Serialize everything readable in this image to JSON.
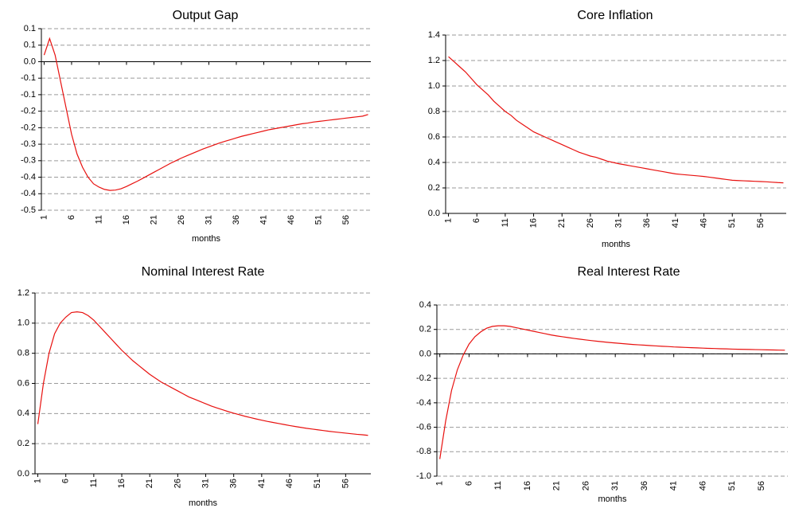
{
  "chart_data": [
    {
      "type": "line",
      "title": "Output Gap",
      "x_label": "months",
      "color": "#e8110f",
      "grid": true,
      "x": [
        1,
        2,
        3,
        4,
        5,
        6,
        7,
        8,
        9,
        10,
        11,
        12,
        13,
        14,
        15,
        16,
        17,
        18,
        19,
        20,
        21,
        22,
        23,
        24,
        25,
        26,
        27,
        28,
        29,
        30,
        31,
        32,
        33,
        34,
        35,
        36,
        37,
        38,
        39,
        40,
        41,
        42,
        43,
        44,
        45,
        46,
        47,
        48,
        49,
        50,
        51,
        52,
        53,
        54,
        55,
        56,
        57,
        58,
        59,
        60
      ],
      "values": [
        0.02,
        0.07,
        0.02,
        -0.06,
        -0.14,
        -0.22,
        -0.28,
        -0.32,
        -0.35,
        -0.37,
        -0.38,
        -0.387,
        -0.39,
        -0.389,
        -0.385,
        -0.378,
        -0.37,
        -0.362,
        -0.353,
        -0.344,
        -0.335,
        -0.326,
        -0.317,
        -0.308,
        -0.3,
        -0.292,
        -0.285,
        -0.278,
        -0.271,
        -0.264,
        -0.258,
        -0.252,
        -0.246,
        -0.241,
        -0.236,
        -0.231,
        -0.226,
        -0.222,
        -0.218,
        -0.214,
        -0.21,
        -0.206,
        -0.203,
        -0.2,
        -0.197,
        -0.194,
        -0.191,
        -0.188,
        -0.186,
        -0.183,
        -0.181,
        -0.179,
        -0.177,
        -0.175,
        -0.173,
        -0.171,
        -0.169,
        -0.167,
        -0.165,
        -0.16
      ],
      "xlim": [
        0.5,
        60.5
      ],
      "xticks": [
        1,
        6,
        11,
        16,
        21,
        26,
        31,
        36,
        41,
        46,
        51,
        56
      ],
      "ylim": [
        -0.45,
        0.1
      ],
      "yticks": [
        {
          "value": -0.45,
          "label": "-0.5"
        },
        -0.4,
        {
          "value": -0.35,
          "label": "-0.4"
        },
        -0.3,
        {
          "value": -0.25,
          "label": "-0.3"
        },
        -0.2,
        {
          "value": -0.15,
          "label": "-0.2"
        },
        -0.1,
        {
          "value": -0.05,
          "label": "-0.1"
        },
        {
          "value": 0,
          "label": "0.0"
        },
        {
          "value": 0.05,
          "label": "0.1"
        },
        0.1
      ]
    },
    {
      "type": "line",
      "title": "Core Inflation",
      "x_label": "months",
      "color": "#e8110f",
      "grid": true,
      "x": [
        1,
        2,
        3,
        4,
        5,
        6,
        7,
        8,
        9,
        10,
        11,
        12,
        13,
        14,
        15,
        16,
        17,
        18,
        19,
        20,
        21,
        22,
        23,
        24,
        25,
        26,
        27,
        28,
        29,
        30,
        31,
        32,
        33,
        34,
        35,
        36,
        37,
        38,
        39,
        40,
        41,
        42,
        43,
        44,
        45,
        46,
        47,
        48,
        49,
        50,
        51,
        52,
        53,
        54,
        55,
        56,
        57,
        58,
        59,
        60
      ],
      "values": [
        1.23,
        1.19,
        1.15,
        1.11,
        1.06,
        1.01,
        0.97,
        0.93,
        0.88,
        0.84,
        0.8,
        0.77,
        0.73,
        0.7,
        0.67,
        0.64,
        0.62,
        0.6,
        0.58,
        0.56,
        0.54,
        0.52,
        0.5,
        0.48,
        0.465,
        0.45,
        0.44,
        0.425,
        0.41,
        0.4,
        0.39,
        0.382,
        0.374,
        0.366,
        0.358,
        0.35,
        0.342,
        0.334,
        0.326,
        0.318,
        0.31,
        0.306,
        0.302,
        0.298,
        0.294,
        0.29,
        0.284,
        0.278,
        0.272,
        0.266,
        0.26,
        0.258,
        0.256,
        0.254,
        0.252,
        0.25,
        0.248,
        0.245,
        0.242,
        0.24
      ],
      "xlim": [
        0.5,
        60.5
      ],
      "xticks": [
        1,
        6,
        11,
        16,
        21,
        26,
        31,
        36,
        41,
        46,
        51,
        56
      ],
      "ylim": [
        0,
        1.4
      ],
      "yticks": [
        {
          "value": 0,
          "label": "0.0"
        },
        0.2,
        0.4,
        0.6,
        0.8,
        {
          "value": 1,
          "label": "1.0"
        },
        1.2,
        1.4
      ]
    },
    {
      "type": "line",
      "title": "Nominal Interest Rate",
      "x_label": "months",
      "color": "#e8110f",
      "grid": true,
      "x": [
        1,
        2,
        3,
        4,
        5,
        6,
        7,
        8,
        9,
        10,
        11,
        12,
        13,
        14,
        15,
        16,
        17,
        18,
        19,
        20,
        21,
        22,
        23,
        24,
        25,
        26,
        27,
        28,
        29,
        30,
        31,
        32,
        33,
        34,
        35,
        36,
        37,
        38,
        39,
        40,
        41,
        42,
        43,
        44,
        45,
        46,
        47,
        48,
        49,
        50,
        51,
        52,
        53,
        54,
        55,
        56,
        57,
        58,
        59,
        60
      ],
      "values": [
        0.33,
        0.6,
        0.8,
        0.93,
        1.0,
        1.04,
        1.07,
        1.075,
        1.07,
        1.05,
        1.02,
        0.98,
        0.94,
        0.9,
        0.86,
        0.82,
        0.785,
        0.75,
        0.72,
        0.69,
        0.66,
        0.635,
        0.61,
        0.59,
        0.57,
        0.55,
        0.53,
        0.51,
        0.495,
        0.48,
        0.465,
        0.45,
        0.437,
        0.425,
        0.413,
        0.402,
        0.392,
        0.382,
        0.373,
        0.364,
        0.356,
        0.348,
        0.341,
        0.334,
        0.327,
        0.32,
        0.314,
        0.308,
        0.302,
        0.297,
        0.292,
        0.287,
        0.282,
        0.278,
        0.274,
        0.27,
        0.266,
        0.262,
        0.259,
        0.255
      ],
      "xlim": [
        0.5,
        60.5
      ],
      "xticks": [
        1,
        6,
        11,
        16,
        21,
        26,
        31,
        36,
        41,
        46,
        51,
        56
      ],
      "ylim": [
        0,
        1.2
      ],
      "yticks": [
        {
          "value": 0,
          "label": "0.0"
        },
        0.2,
        0.4,
        0.6,
        0.8,
        {
          "value": 1,
          "label": "1.0"
        },
        1.2
      ]
    },
    {
      "type": "line",
      "title": "Real Interest Rate",
      "x_label": "months",
      "color": "#e8110f",
      "grid": true,
      "x": [
        1,
        2,
        3,
        4,
        5,
        6,
        7,
        8,
        9,
        10,
        11,
        12,
        13,
        14,
        15,
        16,
        17,
        18,
        19,
        20,
        21,
        22,
        23,
        24,
        25,
        26,
        27,
        28,
        29,
        30,
        31,
        32,
        33,
        34,
        35,
        36,
        37,
        38,
        39,
        40,
        41,
        42,
        43,
        44,
        45,
        46,
        47,
        48,
        49,
        50,
        51,
        52,
        53,
        54,
        55,
        56,
        57,
        58,
        59,
        60
      ],
      "values": [
        -0.86,
        -0.55,
        -0.3,
        -0.13,
        -0.01,
        0.08,
        0.14,
        0.18,
        0.21,
        0.225,
        0.23,
        0.23,
        0.225,
        0.215,
        0.205,
        0.195,
        0.185,
        0.175,
        0.165,
        0.155,
        0.147,
        0.14,
        0.133,
        0.126,
        0.12,
        0.114,
        0.108,
        0.103,
        0.098,
        0.093,
        0.089,
        0.085,
        0.081,
        0.077,
        0.074,
        0.071,
        0.068,
        0.065,
        0.062,
        0.06,
        0.057,
        0.055,
        0.053,
        0.051,
        0.049,
        0.047,
        0.045,
        0.044,
        0.042,
        0.041,
        0.039,
        0.038,
        0.037,
        0.036,
        0.035,
        0.034,
        0.033,
        0.032,
        0.031,
        0.03
      ],
      "xlim": [
        0.5,
        60.5
      ],
      "xticks": [
        1,
        6,
        11,
        16,
        21,
        26,
        31,
        36,
        41,
        46,
        51,
        56
      ],
      "ylim": [
        -1,
        0.4
      ],
      "yticks": [
        {
          "value": -1,
          "label": "-1.0"
        },
        -0.8,
        -0.6,
        -0.4,
        -0.2,
        {
          "value": 0,
          "label": "0.0"
        },
        0.2,
        0.4
      ]
    }
  ]
}
